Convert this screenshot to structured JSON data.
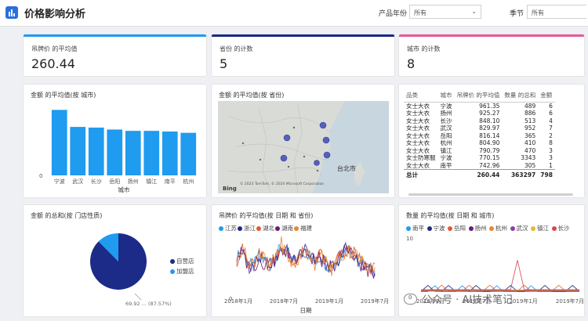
{
  "header": {
    "title": "价格影响分析",
    "filters": [
      {
        "label": "产品年份",
        "value": "所有"
      },
      {
        "label": "季节",
        "value": "所有"
      }
    ]
  },
  "kpis": [
    {
      "label": "吊牌价 的平均值",
      "value": "260.44",
      "accent": "#1f9bf0"
    },
    {
      "label": "省份 的计数",
      "value": "5",
      "accent": "#1c2a88"
    },
    {
      "label": "城市 的计数",
      "value": "8",
      "accent": "#e35b9a"
    }
  ],
  "bar_card": {
    "title": "金额 的平均值(按 城市)"
  },
  "map_card": {
    "title": "金额 的平均值(按 省份)",
    "city_label": "台北市",
    "bing_label": "Bing",
    "copyright": "© 2023 TomTom, © 2024 Microsoft Corporation"
  },
  "table": {
    "headers": [
      "品类",
      "城市",
      "吊牌价 的平均值",
      "数量 的总和",
      "金额"
    ],
    "rows": [
      [
        "女士大衣",
        "宁波",
        "961.35",
        "489",
        "6"
      ],
      [
        "女士大衣",
        "扬州",
        "925.27",
        "886",
        "6"
      ],
      [
        "女士大衣",
        "长沙",
        "848.10",
        "513",
        "4"
      ],
      [
        "女士大衣",
        "武汉",
        "829.97",
        "952",
        "7"
      ],
      [
        "女士大衣",
        "岳阳",
        "816.14",
        "365",
        "2"
      ],
      [
        "女士大衣",
        "杭州",
        "804.90",
        "410",
        "8"
      ],
      [
        "女士大衣",
        "镇江",
        "790.79",
        "470",
        "3"
      ],
      [
        "女士防寒服",
        "宁波",
        "770.15",
        "3343",
        "3"
      ],
      [
        "女士大衣",
        "南平",
        "742.96",
        "305",
        "1"
      ]
    ],
    "total": [
      "总计",
      "",
      "260.44",
      "363297",
      "798"
    ]
  },
  "pie_card": {
    "title": "金额 的总和(按 门店性质)",
    "annotation": "69.92 ... (87.57%)"
  },
  "line_card": {
    "title": "吊牌价 的平均值(按 日期 和 省份)"
  },
  "spike_card": {
    "title": "数量 的平均值(按 日期 和 城市)"
  },
  "watermark": "公众号 · AI技术笔记",
  "chart_data": [
    {
      "type": "bar",
      "title": "金额 的平均值(按 城市)",
      "xlabel": "城市",
      "ylabel": "",
      "categories": [
        "宁波",
        "武汉",
        "长沙",
        "岳阳",
        "扬州",
        "镇江",
        "南平",
        "杭州"
      ],
      "values": [
        100,
        74,
        73,
        70,
        68,
        68,
        67,
        65
      ],
      "ylim": [
        0,
        110
      ],
      "y_ticks": [
        "0"
      ],
      "color": "#1f9bf0"
    },
    {
      "type": "pie",
      "title": "金额 的总和(按 门店性质)",
      "labels": [
        "自营店",
        "加盟店"
      ],
      "values": [
        87.57,
        12.43
      ],
      "colors": [
        "#1c2a88",
        "#1f9bf0"
      ],
      "legend": "right"
    },
    {
      "type": "line",
      "title": "吊牌价 的平均值(按 日期 和 省份)",
      "xlabel": "日期",
      "x_ticks": [
        "2018年1月",
        "2018年7月",
        "2019年1月",
        "2019年7月"
      ],
      "y_ticks": [
        "0"
      ],
      "series": [
        {
          "name": "江苏",
          "color": "#1f9bf0",
          "values": [
            220,
            300,
            180,
            160,
            240,
            200,
            170,
            230,
            320,
            260,
            190,
            230,
            280,
            250,
            200,
            240,
            180,
            140,
            210,
            260,
            300,
            250,
            200,
            160,
            140,
            120
          ]
        },
        {
          "name": "浙江",
          "color": "#1c2a88",
          "values": [
            230,
            280,
            170,
            180,
            230,
            190,
            180,
            220,
            300,
            270,
            200,
            240,
            290,
            240,
            210,
            230,
            170,
            150,
            200,
            270,
            310,
            240,
            190,
            150,
            130,
            110
          ]
        },
        {
          "name": "湖北",
          "color": "#e35b2a",
          "values": [
            210,
            290,
            190,
            170,
            250,
            210,
            160,
            240,
            330,
            250,
            180,
            220,
            270,
            260,
            190,
            250,
            190,
            130,
            220,
            250,
            290,
            260,
            210,
            170,
            150,
            130
          ]
        },
        {
          "name": "湖南",
          "color": "#6b1a7c",
          "values": [
            240,
            270,
            160,
            150,
            220,
            180,
            190,
            210,
            290,
            280,
            210,
            250,
            300,
            230,
            220,
            220,
            160,
            160,
            190,
            280,
            320,
            230,
            180,
            140,
            120,
            100
          ]
        },
        {
          "name": "福建",
          "color": "#e8862e",
          "values": [
            200,
            310,
            200,
            190,
            260,
            220,
            150,
            250,
            340,
            240,
            170,
            210,
            260,
            270,
            180,
            260,
            200,
            120,
            230,
            240,
            280,
            270,
            220,
            180,
            160,
            140
          ]
        }
      ]
    },
    {
      "type": "line",
      "title": "数量 的平均值(按 日期 和 城市)",
      "x_ticks": [
        "2018年1月",
        "2018年7月",
        "2019年1月",
        "2019年7月"
      ],
      "y_ticks": [
        "0",
        "10"
      ],
      "ylim": [
        0,
        10
      ],
      "series": [
        {
          "name": "南平",
          "color": "#1f9bf0",
          "values": [
            1,
            1,
            2,
            1,
            1,
            1,
            2,
            1,
            1,
            1,
            1,
            2,
            1,
            1,
            1,
            1,
            2,
            1,
            1,
            1,
            1,
            1,
            1,
            1
          ]
        },
        {
          "name": "宁波",
          "color": "#1c2a88",
          "values": [
            1,
            2,
            1,
            1,
            2,
            1,
            1,
            1,
            2,
            1,
            1,
            1,
            1,
            2,
            1,
            1,
            1,
            1,
            2,
            1,
            1,
            1,
            2,
            1
          ]
        },
        {
          "name": "岳阳",
          "color": "#e35b2a",
          "values": [
            1,
            1,
            1,
            2,
            1,
            1,
            1,
            2,
            1,
            1,
            2,
            1,
            1,
            1,
            1,
            2,
            1,
            1,
            1,
            1,
            2,
            1,
            1,
            1
          ]
        },
        {
          "name": "扬州",
          "color": "#6b1a7c",
          "values": [
            1,
            1,
            1,
            1,
            1,
            1,
            1,
            1,
            1,
            1,
            1,
            1,
            1,
            1,
            1,
            1,
            1,
            1,
            1,
            1,
            1,
            1,
            1,
            1
          ]
        },
        {
          "name": "杭州",
          "color": "#e8862e",
          "values": [
            1,
            1,
            1,
            1,
            1,
            1,
            1,
            1,
            1,
            1,
            1,
            1,
            1,
            1,
            1,
            1,
            1,
            1,
            1,
            1,
            1,
            1,
            1,
            1
          ]
        },
        {
          "name": "武汉",
          "color": "#8e3ea6",
          "values": [
            1,
            1,
            1,
            1,
            1,
            1,
            1,
            1,
            1,
            1,
            1,
            1,
            1,
            1,
            1,
            1,
            1,
            1,
            1,
            1,
            1,
            1,
            1,
            1
          ]
        },
        {
          "name": "镇江",
          "color": "#e8b92e",
          "values": [
            1,
            1,
            1,
            1,
            1,
            1,
            1,
            1,
            1,
            1,
            1,
            1,
            1,
            1,
            1,
            1,
            1,
            1,
            1,
            1,
            1,
            1,
            1,
            1
          ]
        },
        {
          "name": "长沙",
          "color": "#d64550",
          "values": [
            1,
            1,
            1,
            1,
            1,
            1,
            1,
            1,
            1,
            1,
            1,
            1,
            1,
            1,
            6,
            1,
            1,
            1,
            1,
            1,
            1,
            1,
            1,
            1
          ]
        }
      ]
    }
  ]
}
